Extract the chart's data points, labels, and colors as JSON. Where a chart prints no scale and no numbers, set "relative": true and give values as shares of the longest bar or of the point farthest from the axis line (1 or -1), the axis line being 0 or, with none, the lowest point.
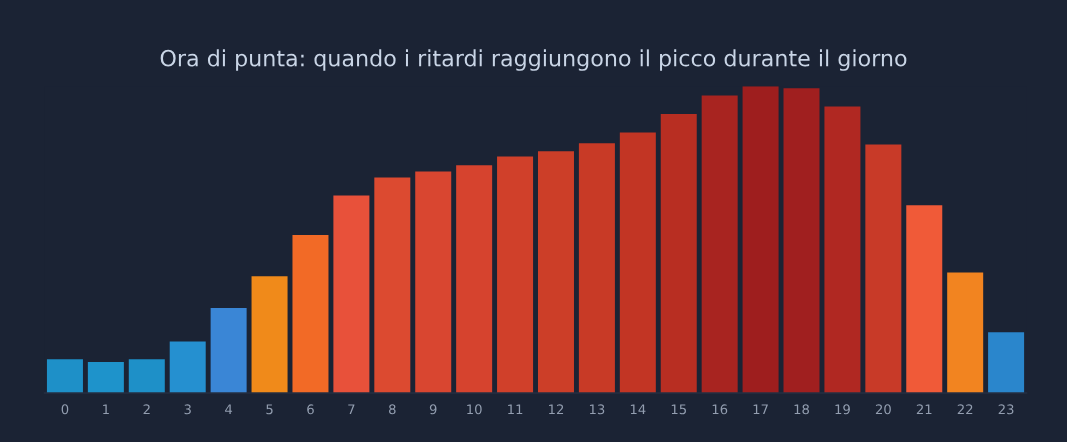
{
  "chart_data": {
    "type": "bar",
    "title": "Ora di punta: quando i ritardi raggiungono il picco durante il giorno",
    "categories": [
      "0",
      "1",
      "2",
      "3",
      "4",
      "5",
      "6",
      "7",
      "8",
      "9",
      "10",
      "11",
      "12",
      "13",
      "14",
      "15",
      "16",
      "17",
      "18",
      "19",
      "20",
      "21",
      "22",
      "23"
    ],
    "values": [
      0.11,
      0.101,
      0.11,
      0.168,
      0.277,
      0.38,
      0.515,
      0.644,
      0.702,
      0.722,
      0.742,
      0.771,
      0.788,
      0.814,
      0.849,
      0.909,
      0.97,
      1,
      0.993,
      0.934,
      0.81,
      0.612,
      0.393,
      0.198
    ],
    "colors": [
      "#1e90c8",
      "#1e93cb",
      "#1e90c8",
      "#2590d0",
      "#3a86d6",
      "#f08a1a",
      "#f26a26",
      "#e8513a",
      "#dc4a30",
      "#d94630",
      "#d6432e",
      "#d0402a",
      "#cc3e28",
      "#c83a26",
      "#c23524",
      "#b82e22",
      "#a82420",
      "#9e1e1e",
      "#a01f1f",
      "#b02822",
      "#c83a28",
      "#f05a38",
      "#f28420",
      "#2a86cc"
    ],
    "relative": true
  }
}
